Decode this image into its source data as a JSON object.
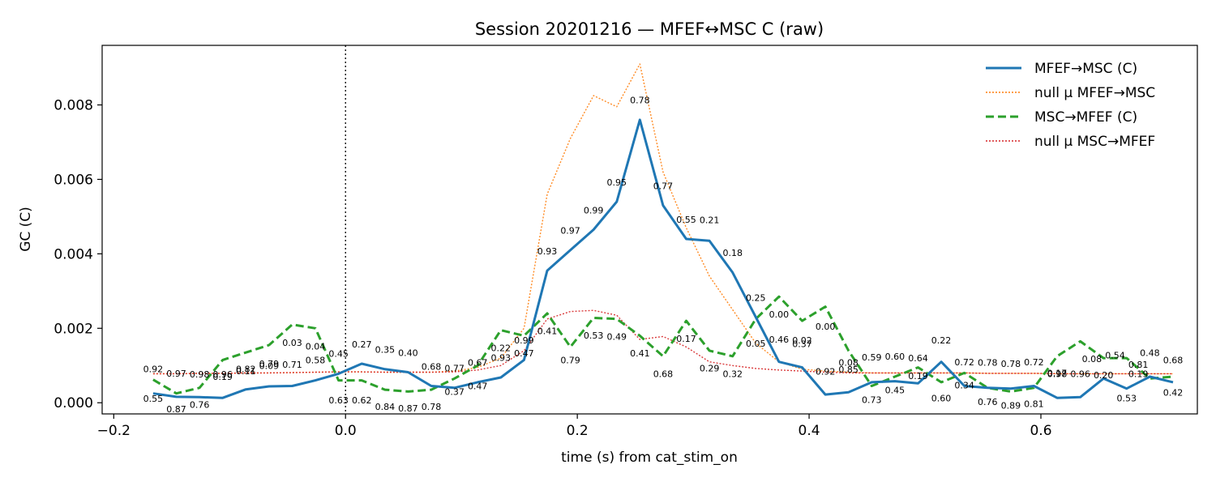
{
  "chart_data": {
    "type": "line",
    "title": "Session 20201216 — MFEF↔MSC C (raw)",
    "xlabel": "time (s) from cat_stim_on",
    "ylabel": "GC (C)",
    "xlim": [
      -0.21,
      0.735
    ],
    "ylim": [
      -0.0003,
      0.0096
    ],
    "xticks": [
      -0.2,
      0.0,
      0.2,
      0.4,
      0.6
    ],
    "xtick_labels": [
      "−0.2",
      "0.0",
      "0.2",
      "0.4",
      "0.6"
    ],
    "yticks": [
      0.0,
      0.002,
      0.004,
      0.006,
      0.008
    ],
    "ytick_labels": [
      "0.000",
      "0.002",
      "0.004",
      "0.006",
      "0.008"
    ],
    "vline_x": 0.0,
    "legend_position": "top-right",
    "x": [
      -0.166,
      -0.146,
      -0.126,
      -0.106,
      -0.086,
      -0.066,
      -0.046,
      -0.026,
      -0.006,
      0.014,
      0.034,
      0.054,
      0.074,
      0.094,
      0.114,
      0.134,
      0.154,
      0.174,
      0.194,
      0.214,
      0.234,
      0.254,
      0.274,
      0.294,
      0.314,
      0.334,
      0.354,
      0.374,
      0.394,
      0.414,
      0.434,
      0.454,
      0.474,
      0.494,
      0.514,
      0.534,
      0.554,
      0.574,
      0.594,
      0.614,
      0.634,
      0.654,
      0.674,
      0.694,
      0.714
    ],
    "series": [
      {
        "name": "MFEF→MSC (C)",
        "color": "#1f77b4",
        "style": "solid",
        "values": [
          0.00025,
          0.00016,
          0.00015,
          0.00013,
          0.00036,
          0.00044,
          0.00045,
          0.0006,
          0.00078,
          0.00105,
          0.0009,
          0.00082,
          0.00045,
          0.0004,
          0.00055,
          0.00068,
          0.00115,
          0.00355,
          0.0041,
          0.00465,
          0.0054,
          0.0076,
          0.0053,
          0.0044,
          0.00435,
          0.0035,
          0.0023,
          0.0011,
          0.00095,
          0.00022,
          0.00028,
          0.00055,
          0.00058,
          0.00052,
          0.0011,
          0.00045,
          0.0004,
          0.00038,
          0.00045,
          0.00013,
          0.00015,
          0.00065,
          0.00038,
          0.0007,
          0.00055
        ]
      },
      {
        "name": "null μ MFEF→MSC",
        "color": "#ff7f0e",
        "style": "dotted",
        "values": [
          0.00078,
          0.00078,
          0.00079,
          0.00079,
          0.0008,
          0.0008,
          0.00081,
          0.00082,
          0.00083,
          0.00083,
          0.00082,
          0.00082,
          0.00082,
          0.00085,
          0.00095,
          0.0012,
          0.002,
          0.0056,
          0.0071,
          0.00825,
          0.00795,
          0.0091,
          0.0062,
          0.0047,
          0.0034,
          0.0025,
          0.0016,
          0.0011,
          0.0009,
          0.00085,
          0.00082,
          0.0008,
          0.0008,
          0.0008,
          0.0008,
          0.0008,
          0.00079,
          0.00079,
          0.00079,
          0.00078,
          0.00078,
          0.00078,
          0.00078,
          0.00078,
          0.00078
        ]
      },
      {
        "name": "MSC→MFEF (C)",
        "color": "#2ca02c",
        "style": "dashed",
        "values": [
          0.00062,
          0.00025,
          0.0004,
          0.00115,
          0.00135,
          0.00155,
          0.0021,
          0.002,
          0.0006,
          0.0006,
          0.00035,
          0.0003,
          0.00035,
          0.00065,
          0.001,
          0.00195,
          0.0018,
          0.0024,
          0.0015,
          0.00228,
          0.00225,
          0.0018,
          0.00125,
          0.0022,
          0.0014,
          0.00125,
          0.00225,
          0.00285,
          0.0022,
          0.00258,
          0.0014,
          0.00045,
          0.0007,
          0.00095,
          0.00055,
          0.0008,
          0.0004,
          0.0003,
          0.0004,
          0.00125,
          0.00165,
          0.0012,
          0.0012,
          0.00065,
          0.0007
        ]
      },
      {
        "name": "null μ MSC→MFEF",
        "color": "#d62728",
        "style": "dotted",
        "values": [
          0.00078,
          0.00078,
          0.00079,
          0.00079,
          0.0008,
          0.0008,
          0.00081,
          0.00082,
          0.00083,
          0.00083,
          0.00082,
          0.00082,
          0.00082,
          0.00083,
          0.00088,
          0.001,
          0.0014,
          0.00225,
          0.00245,
          0.00248,
          0.00235,
          0.0017,
          0.00178,
          0.0015,
          0.0011,
          0.001,
          0.00092,
          0.00088,
          0.00085,
          0.00082,
          0.0008,
          0.0008,
          0.0008,
          0.0008,
          0.0008,
          0.0008,
          0.00079,
          0.00079,
          0.00079,
          0.00078,
          0.00078,
          0.00078,
          0.00078,
          0.00078,
          0.00078
        ]
      }
    ],
    "annotations": [
      {
        "x": -0.166,
        "y": 0.00082,
        "text": "0.92"
      },
      {
        "x": -0.166,
        "y": 3e-05,
        "text": "0.55"
      },
      {
        "x": -0.146,
        "y": 0.0007,
        "text": "0.97"
      },
      {
        "x": -0.146,
        "y": -0.00026,
        "text": "0.87"
      },
      {
        "x": -0.126,
        "y": 0.00068,
        "text": "0.98"
      },
      {
        "x": -0.126,
        "y": -0.00014,
        "text": "0.76"
      },
      {
        "x": -0.106,
        "y": 0.00068,
        "text": "0.96"
      },
      {
        "x": -0.106,
        "y": 0.00061,
        "text": "0.19"
      },
      {
        "x": -0.086,
        "y": 0.00082,
        "text": "0.82"
      },
      {
        "x": -0.086,
        "y": 0.00077,
        "text": "0.11"
      },
      {
        "x": -0.066,
        "y": 0.00096,
        "text": "0.79"
      },
      {
        "x": -0.066,
        "y": 0.00091,
        "text": "0.09"
      },
      {
        "x": -0.046,
        "y": 0.00094,
        "text": "0.71"
      },
      {
        "x": -0.046,
        "y": 0.00153,
        "text": "0.03"
      },
      {
        "x": -0.026,
        "y": 0.00143,
        "text": "0.04"
      },
      {
        "x": -0.026,
        "y": 0.00106,
        "text": "0.58"
      },
      {
        "x": -0.006,
        "y": 0.00123,
        "text": "0.45"
      },
      {
        "x": -0.006,
        "y": -2e-05,
        "text": "0.63"
      },
      {
        "x": 0.014,
        "y": 0.00148,
        "text": "0.27"
      },
      {
        "x": 0.014,
        "y": -2e-05,
        "text": "0.62"
      },
      {
        "x": 0.034,
        "y": 0.00134,
        "text": "0.35"
      },
      {
        "x": 0.034,
        "y": -0.00019,
        "text": "0.84"
      },
      {
        "x": 0.054,
        "y": 0.00126,
        "text": "0.40"
      },
      {
        "x": 0.054,
        "y": -0.00024,
        "text": "0.87"
      },
      {
        "x": 0.074,
        "y": 0.00089,
        "text": "0.68"
      },
      {
        "x": 0.074,
        "y": -0.00019,
        "text": "0.78"
      },
      {
        "x": 0.094,
        "y": 0.00084,
        "text": "0.77"
      },
      {
        "x": 0.094,
        "y": 0.00021,
        "text": "0.37"
      },
      {
        "x": 0.114,
        "y": 0.00099,
        "text": "0.67"
      },
      {
        "x": 0.114,
        "y": 0.00036,
        "text": "0.47"
      },
      {
        "x": 0.134,
        "y": 0.00112,
        "text": "0.93"
      },
      {
        "x": 0.134,
        "y": 0.00139,
        "text": "0.22"
      },
      {
        "x": 0.154,
        "y": 0.00159,
        "text": "0.99"
      },
      {
        "x": 0.154,
        "y": 0.00124,
        "text": "0.47"
      },
      {
        "x": 0.174,
        "y": 0.00399,
        "text": "0.93"
      },
      {
        "x": 0.174,
        "y": 0.00184,
        "text": "0.41"
      },
      {
        "x": 0.194,
        "y": 0.00454,
        "text": "0.97"
      },
      {
        "x": 0.194,
        "y": 0.00106,
        "text": "0.79"
      },
      {
        "x": 0.214,
        "y": 0.00509,
        "text": "0.99"
      },
      {
        "x": 0.214,
        "y": 0.00172,
        "text": "0.53"
      },
      {
        "x": 0.234,
        "y": 0.00584,
        "text": "0.95"
      },
      {
        "x": 0.234,
        "y": 0.00169,
        "text": "0.49"
      },
      {
        "x": 0.254,
        "y": 0.00804,
        "text": "0.78"
      },
      {
        "x": 0.254,
        "y": 0.00124,
        "text": "0.41"
      },
      {
        "x": 0.274,
        "y": 0.00574,
        "text": "0.77"
      },
      {
        "x": 0.274,
        "y": 0.00069,
        "text": "0.68"
      },
      {
        "x": 0.294,
        "y": 0.00484,
        "text": "0.55"
      },
      {
        "x": 0.294,
        "y": 0.00164,
        "text": "0.17"
      },
      {
        "x": 0.314,
        "y": 0.00482,
        "text": "0.21"
      },
      {
        "x": 0.314,
        "y": 0.00084,
        "text": "0.29"
      },
      {
        "x": 0.334,
        "y": 0.00394,
        "text": "0.18"
      },
      {
        "x": 0.334,
        "y": 0.00069,
        "text": "0.32"
      },
      {
        "x": 0.354,
        "y": 0.00274,
        "text": "0.25"
      },
      {
        "x": 0.354,
        "y": 0.00151,
        "text": "0.05"
      },
      {
        "x": 0.374,
        "y": 0.00229,
        "text": "0.00"
      },
      {
        "x": 0.374,
        "y": 0.00161,
        "text": "0.46"
      },
      {
        "x": 0.394,
        "y": 0.00159,
        "text": "0.02"
      },
      {
        "x": 0.394,
        "y": 0.00149,
        "text": "0.37"
      },
      {
        "x": 0.414,
        "y": 0.00196,
        "text": "0.00"
      },
      {
        "x": 0.414,
        "y": 0.00076,
        "text": "0.92"
      },
      {
        "x": 0.434,
        "y": 0.00099,
        "text": "0.08"
      },
      {
        "x": 0.434,
        "y": 0.00081,
        "text": "0.85"
      },
      {
        "x": 0.454,
        "y": 0.00114,
        "text": "0.59"
      },
      {
        "x": 0.454,
        "y": -1e-05,
        "text": "0.73"
      },
      {
        "x": 0.474,
        "y": 0.00116,
        "text": "0.60"
      },
      {
        "x": 0.474,
        "y": 0.00026,
        "text": "0.45"
      },
      {
        "x": 0.494,
        "y": 0.00111,
        "text": "0.64"
      },
      {
        "x": 0.494,
        "y": 0.00064,
        "text": "0.19"
      },
      {
        "x": 0.514,
        "y": 0.00159,
        "text": "0.22"
      },
      {
        "x": 0.514,
        "y": 4e-05,
        "text": "0.60"
      },
      {
        "x": 0.534,
        "y": 0.00101,
        "text": "0.72"
      },
      {
        "x": 0.534,
        "y": 0.00039,
        "text": "0.34"
      },
      {
        "x": 0.554,
        "y": 0.00099,
        "text": "0.78"
      },
      {
        "x": 0.554,
        "y": -6e-05,
        "text": "0.76"
      },
      {
        "x": 0.574,
        "y": 0.00096,
        "text": "0.78"
      },
      {
        "x": 0.574,
        "y": -0.00016,
        "text": "0.89"
      },
      {
        "x": 0.594,
        "y": 0.00101,
        "text": "0.72"
      },
      {
        "x": 0.594,
        "y": -0.00011,
        "text": "0.81"
      },
      {
        "x": 0.614,
        "y": 0.00071,
        "text": "0.17"
      },
      {
        "x": 0.614,
        "y": 0.00069,
        "text": "0.98"
      },
      {
        "x": 0.634,
        "y": 0.00069,
        "text": "0.96"
      },
      {
        "x": 0.644,
        "y": 0.00109,
        "text": "0.08"
      },
      {
        "x": 0.664,
        "y": 0.00119,
        "text": "0.54"
      },
      {
        "x": 0.654,
        "y": 0.00066,
        "text": "0.20"
      },
      {
        "x": 0.684,
        "y": 0.00094,
        "text": "0.81"
      },
      {
        "x": 0.684,
        "y": 0.00069,
        "text": "0.19"
      },
      {
        "x": 0.694,
        "y": 0.00126,
        "text": "0.48"
      },
      {
        "x": 0.674,
        "y": 4e-05,
        "text": "0.53"
      },
      {
        "x": 0.714,
        "y": 0.00106,
        "text": "0.68"
      },
      {
        "x": 0.714,
        "y": 0.00019,
        "text": "0.42"
      }
    ]
  }
}
